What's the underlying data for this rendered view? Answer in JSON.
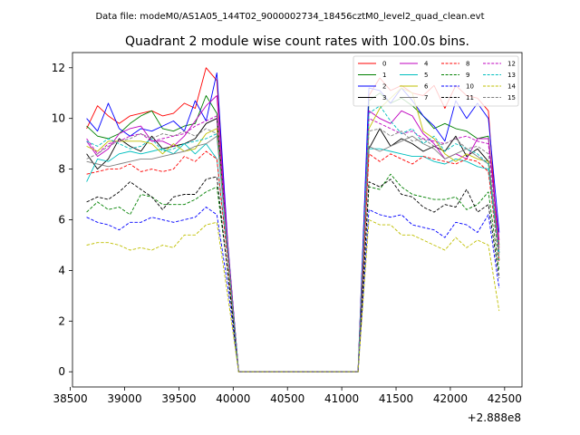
{
  "suptitle": "Data file: modeM0/AS1A05_144T02_9000002734_18456cztM0_level2_quad_clean.evt",
  "chart_data": {
    "type": "line",
    "title": "Quadrant 2 module wise count rates with 100.0s bins.",
    "xlabel": "",
    "ylabel": "",
    "x_offset_label": "+2.888e8",
    "xlim": [
      38520,
      42660
    ],
    "ylim": [
      -0.6,
      12.6
    ],
    "xticks": [
      38500,
      39000,
      39500,
      40000,
      40500,
      41000,
      41500,
      42000,
      42500
    ],
    "yticks": [
      0,
      2,
      4,
      6,
      8,
      10,
      12
    ],
    "x": [
      38650,
      38750,
      38850,
      38950,
      39050,
      39150,
      39250,
      39350,
      39450,
      39550,
      39650,
      39750,
      39850,
      39950,
      40050,
      40150,
      40250,
      40350,
      40450,
      40550,
      40650,
      40750,
      40850,
      40950,
      41050,
      41150,
      41250,
      41350,
      41450,
      41550,
      41650,
      41750,
      41850,
      41950,
      42050,
      42150,
      42250,
      42350,
      42450
    ],
    "legend_position": "top-right",
    "series": [
      {
        "name": "0",
        "color": "#ff0000",
        "dash": "solid",
        "values": [
          9.6,
          10.5,
          10.1,
          9.8,
          10.1,
          10.2,
          10.3,
          10.1,
          10.2,
          10.6,
          10.4,
          12.0,
          11.5,
          5.0,
          0,
          0,
          0,
          0,
          0,
          0,
          0,
          0,
          0,
          0,
          0,
          0,
          10.9,
          11.6,
          11.1,
          11.3,
          11.0,
          10.9,
          11.3,
          10.4,
          11.3,
          10.9,
          10.8,
          10.3,
          4.4
        ]
      },
      {
        "name": "1",
        "color": "#008000",
        "dash": "solid",
        "values": [
          9.7,
          9.3,
          9.2,
          9.4,
          9.8,
          10.1,
          10.3,
          9.6,
          9.5,
          9.7,
          9.8,
          10.9,
          10.2,
          5.0,
          0,
          0,
          0,
          0,
          0,
          0,
          0,
          0,
          0,
          0,
          0,
          0,
          10.7,
          11.0,
          10.6,
          10.8,
          10.5,
          10.1,
          9.6,
          9.8,
          9.6,
          9.5,
          9.2,
          9.3,
          5.0
        ]
      },
      {
        "name": "2",
        "color": "#0000ff",
        "dash": "solid",
        "values": [
          10.0,
          9.5,
          10.6,
          9.6,
          9.3,
          9.6,
          9.5,
          9.7,
          9.9,
          9.5,
          10.7,
          9.9,
          11.8,
          5.1,
          0,
          0,
          0,
          0,
          0,
          0,
          0,
          0,
          0,
          0,
          0,
          0,
          11.2,
          11.1,
          10.6,
          11.2,
          10.7,
          10.1,
          9.7,
          9.1,
          10.7,
          10.0,
          10.6,
          10.0,
          5.5
        ]
      },
      {
        "name": "3",
        "color": "#000000",
        "dash": "solid",
        "values": [
          8.6,
          8.0,
          8.4,
          9.2,
          8.9,
          8.7,
          9.3,
          8.8,
          8.9,
          9.0,
          9.2,
          9.8,
          10.0,
          4.8,
          0,
          0,
          0,
          0,
          0,
          0,
          0,
          0,
          0,
          0,
          0,
          0,
          8.8,
          9.6,
          8.9,
          9.2,
          9.0,
          8.7,
          8.9,
          8.7,
          9.3,
          8.5,
          8.8,
          8.3,
          4.7
        ]
      },
      {
        "name": "4",
        "color": "#bf00bf",
        "dash": "solid",
        "values": [
          9.1,
          8.5,
          8.8,
          9.4,
          9.6,
          9.7,
          9.1,
          9.1,
          8.9,
          9.3,
          9.9,
          10.5,
          10.9,
          5.0,
          0,
          0,
          0,
          0,
          0,
          0,
          0,
          0,
          0,
          0,
          0,
          0,
          10.3,
          10.0,
          9.8,
          10.3,
          10.1,
          9.4,
          9.0,
          8.4,
          8.6,
          8.4,
          9.2,
          9.2,
          5.2
        ]
      },
      {
        "name": "5",
        "color": "#00bfbf",
        "dash": "solid",
        "values": [
          7.5,
          8.4,
          8.3,
          8.6,
          8.7,
          8.6,
          8.7,
          8.8,
          8.6,
          9.0,
          8.6,
          9.0,
          8.4,
          4.6,
          0,
          0,
          0,
          0,
          0,
          0,
          0,
          0,
          0,
          0,
          0,
          0,
          8.8,
          8.8,
          8.7,
          8.6,
          8.5,
          8.5,
          8.3,
          8.2,
          8.4,
          8.3,
          8.1,
          8.0,
          4.7
        ]
      },
      {
        "name": "6",
        "color": "#bfbf00",
        "dash": "solid",
        "values": [
          8.9,
          8.7,
          9.1,
          9.1,
          9.1,
          9.1,
          9.0,
          8.6,
          9.0,
          8.7,
          8.8,
          9.4,
          9.6,
          4.8,
          0,
          0,
          0,
          0,
          0,
          0,
          0,
          0,
          0,
          0,
          0,
          0,
          9.6,
          10.4,
          10.8,
          11.2,
          11.0,
          9.5,
          9.2,
          8.6,
          8.3,
          8.6,
          8.4,
          8.3,
          4.9
        ]
      },
      {
        "name": "7",
        "color": "#808080",
        "dash": "solid",
        "values": [
          8.3,
          8.2,
          8.1,
          8.2,
          8.3,
          8.4,
          8.4,
          8.5,
          8.6,
          8.7,
          8.9,
          9.0,
          9.3,
          4.8,
          0,
          0,
          0,
          0,
          0,
          0,
          0,
          0,
          0,
          0,
          0,
          0,
          8.9,
          8.7,
          8.9,
          9.1,
          9.3,
          9.0,
          8.8,
          8.4,
          8.6,
          8.8,
          8.5,
          8.2,
          4.8
        ]
      },
      {
        "name": "8",
        "color": "#ff0000",
        "dash": "dashed",
        "values": [
          7.8,
          7.9,
          8.0,
          8.0,
          8.2,
          7.9,
          8.0,
          7.9,
          8.0,
          8.5,
          8.3,
          8.7,
          8.4,
          4.4,
          0,
          0,
          0,
          0,
          0,
          0,
          0,
          0,
          0,
          0,
          0,
          0,
          8.6,
          8.3,
          8.6,
          8.4,
          8.2,
          8.5,
          8.4,
          8.3,
          8.2,
          8.4,
          8.3,
          7.9,
          4.3
        ]
      },
      {
        "name": "9",
        "color": "#008000",
        "dash": "dashed",
        "values": [
          6.3,
          6.7,
          6.4,
          6.5,
          6.2,
          7.0,
          6.9,
          6.6,
          6.6,
          6.6,
          6.8,
          7.1,
          7.3,
          4.0,
          0,
          0,
          0,
          0,
          0,
          0,
          0,
          0,
          0,
          0,
          0,
          0,
          7.3,
          7.2,
          7.8,
          7.3,
          7.0,
          6.9,
          6.8,
          6.8,
          6.9,
          6.4,
          6.6,
          7.1,
          4.0
        ]
      },
      {
        "name": "10",
        "color": "#0000ff",
        "dash": "dashed",
        "values": [
          6.1,
          5.9,
          5.8,
          5.6,
          5.9,
          5.9,
          6.1,
          6.0,
          5.9,
          6.0,
          6.1,
          6.5,
          6.2,
          3.4,
          0,
          0,
          0,
          0,
          0,
          0,
          0,
          0,
          0,
          0,
          0,
          0,
          6.4,
          6.2,
          6.1,
          6.2,
          5.8,
          5.7,
          5.6,
          5.3,
          5.9,
          5.8,
          5.5,
          6.2,
          3.3
        ]
      },
      {
        "name": "11",
        "color": "#000000",
        "dash": "dashed",
        "values": [
          6.7,
          6.9,
          6.8,
          7.1,
          7.5,
          7.2,
          6.9,
          6.4,
          6.9,
          7.0,
          7.0,
          7.6,
          7.7,
          3.9,
          0,
          0,
          0,
          0,
          0,
          0,
          0,
          0,
          0,
          0,
          0,
          0,
          7.5,
          7.3,
          7.6,
          7.0,
          6.9,
          6.5,
          6.3,
          6.6,
          6.5,
          7.2,
          6.3,
          6.6,
          3.7
        ]
      },
      {
        "name": "12",
        "color": "#bf00bf",
        "dash": "dashed",
        "values": [
          9.2,
          8.6,
          9.0,
          9.1,
          9.3,
          9.4,
          9.1,
          9.2,
          9.3,
          9.4,
          9.7,
          9.9,
          10.1,
          5.0,
          0,
          0,
          0,
          0,
          0,
          0,
          0,
          0,
          0,
          0,
          0,
          0,
          10.0,
          9.8,
          9.6,
          9.4,
          9.5,
          9.2,
          9.1,
          9.0,
          9.2,
          9.3,
          9.1,
          9.0,
          4.9
        ]
      },
      {
        "name": "13",
        "color": "#00bfbf",
        "dash": "dashed",
        "values": [
          9.1,
          8.9,
          9.2,
          9.0,
          8.8,
          8.9,
          9.2,
          8.7,
          8.8,
          9.0,
          9.1,
          9.2,
          9.4,
          4.7,
          0,
          0,
          0,
          0,
          0,
          0,
          0,
          0,
          0,
          0,
          0,
          0,
          10.2,
          10.5,
          9.9,
          9.4,
          9.6,
          9.0,
          9.3,
          8.7,
          9.0,
          8.8,
          8.6,
          8.2,
          4.4
        ]
      },
      {
        "name": "14",
        "color": "#bfbf00",
        "dash": "dashed",
        "values": [
          5.0,
          5.1,
          5.1,
          5.0,
          4.8,
          4.9,
          4.8,
          5.0,
          4.9,
          5.4,
          5.4,
          5.8,
          5.9,
          3.0,
          0,
          0,
          0,
          0,
          0,
          0,
          0,
          0,
          0,
          0,
          0,
          0,
          6.0,
          5.8,
          5.8,
          5.4,
          5.4,
          5.2,
          5.0,
          4.8,
          5.3,
          4.9,
          5.2,
          5.0,
          2.4
        ]
      },
      {
        "name": "15",
        "color": "#808080",
        "dash": "dashed",
        "values": [
          8.4,
          8.6,
          8.9,
          9.1,
          9.2,
          9.4,
          9.2,
          9.4,
          9.3,
          9.5,
          9.3,
          9.6,
          9.4,
          4.8,
          0,
          0,
          0,
          0,
          0,
          0,
          0,
          0,
          0,
          0,
          0,
          0,
          9.5,
          9.6,
          9.3,
          9.5,
          9.1,
          9.2,
          8.9,
          9.0,
          9.2,
          8.8,
          8.9,
          8.6,
          4.6
        ]
      }
    ]
  }
}
